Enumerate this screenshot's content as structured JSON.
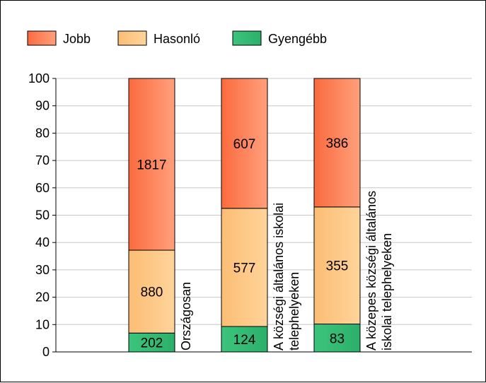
{
  "chart_data": {
    "type": "bar",
    "stacked": true,
    "legend_position": "top-left",
    "grid": true,
    "ylim": [
      0,
      100
    ],
    "yticks": [
      0,
      10,
      20,
      30,
      40,
      50,
      60,
      70,
      80,
      90,
      100
    ],
    "categories": [
      "Országosan",
      "A községi általános iskolai telephelyeken",
      "A közepes községi általános iskolai telephelyeken"
    ],
    "category_label_lines": [
      [
        "Országosan"
      ],
      [
        "A községi általános iskolai",
        "telephelyeken"
      ],
      [
        "A közepes községi általános",
        "iskolai telephelyeken"
      ]
    ],
    "series": [
      {
        "name": "Gyengébb",
        "color_from": "#3cc47c",
        "color_to": "#2bb06a",
        "labels": [
          "202",
          "124",
          "83"
        ],
        "values": [
          6.9,
          9.3,
          10.2
        ]
      },
      {
        "name": "Hasonló",
        "color_from": "#fbbd74",
        "color_to": "#ffd49a",
        "labels": [
          "880",
          "577",
          "355"
        ],
        "values": [
          30.3,
          43.2,
          42.8
        ]
      },
      {
        "name": "Jobb",
        "color_from": "#fb6a3e",
        "color_to": "#ffa07c",
        "labels": [
          "1817",
          "607",
          "386"
        ],
        "values": [
          62.8,
          47.5,
          47.0
        ]
      }
    ]
  }
}
